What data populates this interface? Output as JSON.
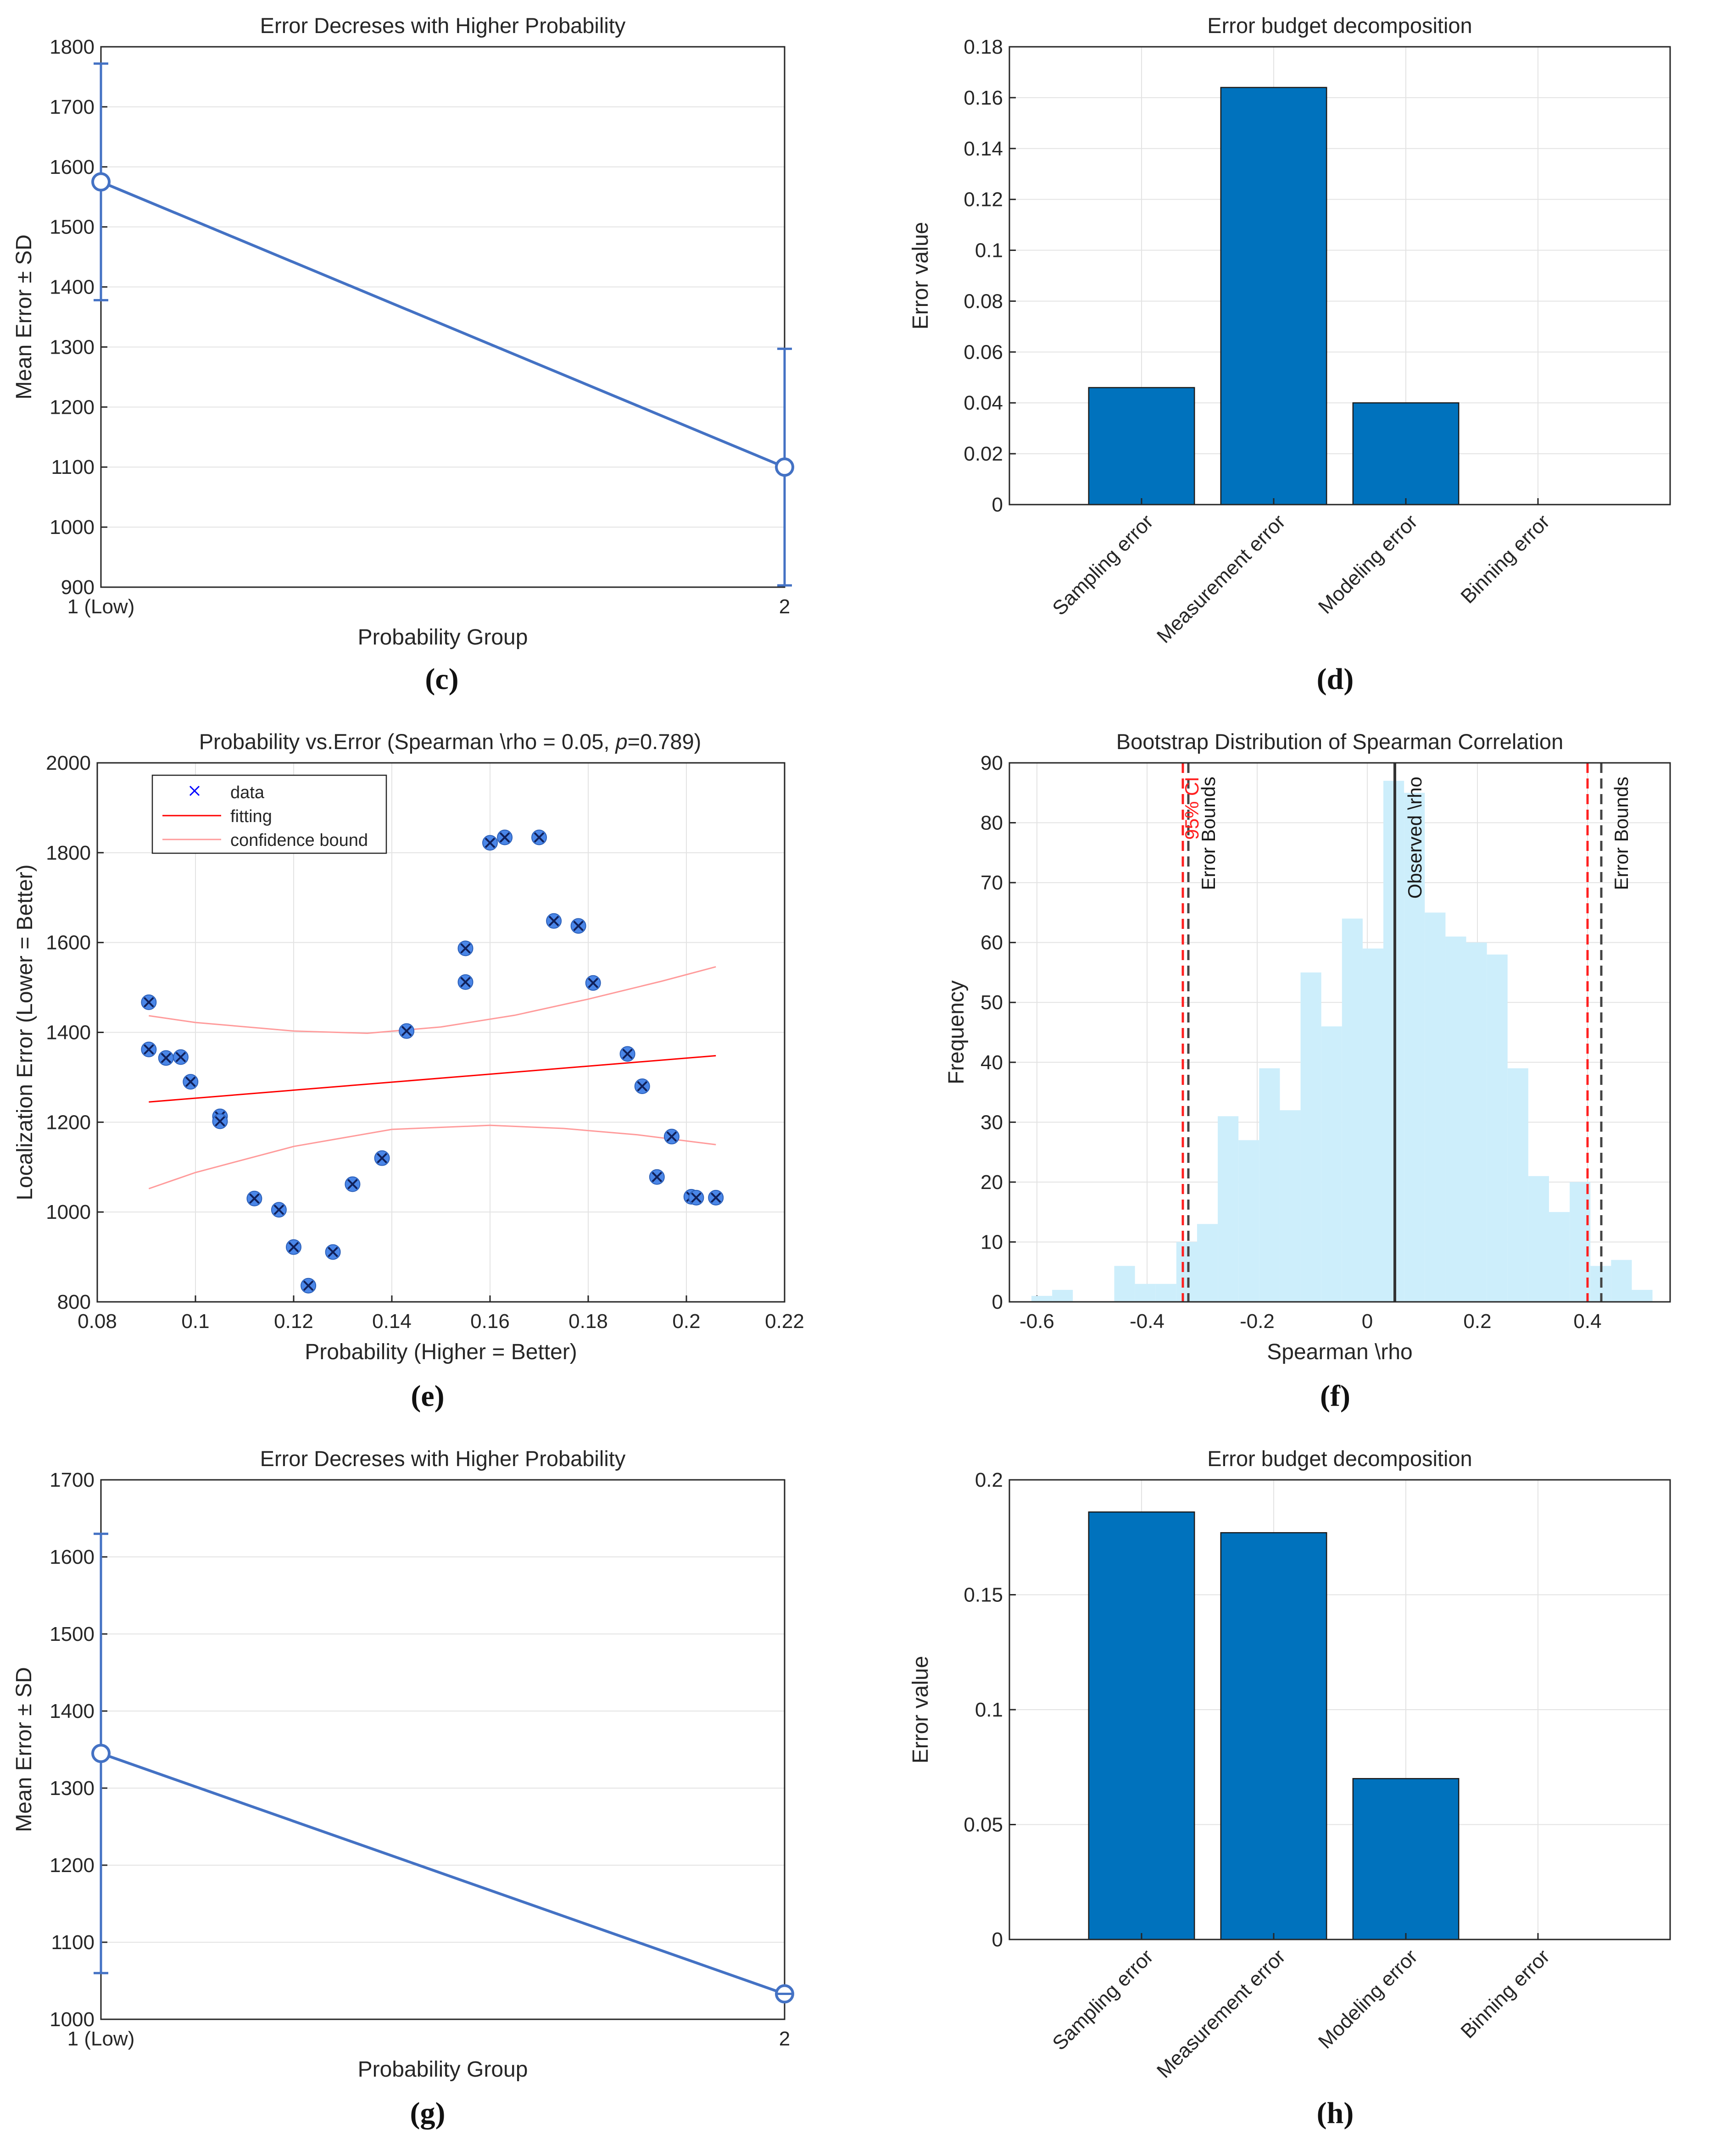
{
  "panel_labels": [
    "(c)",
    "(d)",
    "(e)",
    "(f)",
    "(g)",
    "(h)"
  ],
  "colors": {
    "line": "#4472C4",
    "bar": "#0072BD",
    "hist": "#CDEEFB",
    "fit": "#FF0000",
    "bound": "#FF9B9B",
    "marker": "#4A86E8",
    "observed": "#333333",
    "ci": "#FF2020",
    "err": "#444444"
  },
  "chart_data": [
    {
      "id": "c",
      "type": "line",
      "title": "Error Decreses with Higher Probability",
      "xlabel": "Probability Group",
      "ylabel": "Mean Error ± SD",
      "categories": [
        "1 (Low)",
        "2"
      ],
      "values": [
        1575,
        1100
      ],
      "sd": [
        197,
        197
      ],
      "ylim": [
        900,
        1800
      ],
      "yticks": [
        900,
        1000,
        1100,
        1200,
        1300,
        1400,
        1500,
        1600,
        1700,
        1800
      ],
      "grid": true
    },
    {
      "id": "d",
      "type": "bar",
      "title": "Error budget decomposition",
      "xlabel": "",
      "ylabel": "Error value",
      "categories": [
        "Sampling error",
        "Measurement error",
        "Modeling error",
        "Binning error"
      ],
      "values": [
        0.046,
        0.164,
        0.04,
        0
      ],
      "ylim": [
        0,
        0.18
      ],
      "yticks": [
        "0",
        "0.02",
        "0.04",
        "0.06",
        "0.08",
        "0.1",
        "0.12",
        "0.14",
        "0.16",
        "0.18"
      ],
      "grid": true
    },
    {
      "id": "e",
      "type": "scatter",
      "title": "Probability vs.Error (Spearman \\rho = 0.05,",
      "title_p": "p",
      "title_rest": "=0.789)",
      "xlabel": "Probability (Higher = Better)",
      "ylabel": "Localization Error (Lower = Better)",
      "xlim": [
        0.08,
        0.22
      ],
      "ylim": [
        800,
        2000
      ],
      "xticks": [
        "0.08",
        "0.1",
        "0.12",
        "0.14",
        "0.16",
        "0.18",
        "0.2",
        "0.22"
      ],
      "yticks": [
        "800",
        "1000",
        "1200",
        "1400",
        "1600",
        "1800",
        "2000"
      ],
      "points": [
        [
          0.0905,
          1467
        ],
        [
          0.0905,
          1362
        ],
        [
          0.094,
          1343
        ],
        [
          0.097,
          1345
        ],
        [
          0.099,
          1290
        ],
        [
          0.105,
          1213
        ],
        [
          0.105,
          1202
        ],
        [
          0.112,
          1030
        ],
        [
          0.117,
          1005
        ],
        [
          0.12,
          922
        ],
        [
          0.123,
          836
        ],
        [
          0.128,
          911
        ],
        [
          0.132,
          1062
        ],
        [
          0.138,
          1120
        ],
        [
          0.143,
          1403
        ],
        [
          0.155,
          1587
        ],
        [
          0.155,
          1512
        ],
        [
          0.16,
          1822
        ],
        [
          0.163,
          1834
        ],
        [
          0.17,
          1834
        ],
        [
          0.173,
          1648
        ],
        [
          0.178,
          1637
        ],
        [
          0.181,
          1510
        ],
        [
          0.188,
          1352
        ],
        [
          0.191,
          1280
        ],
        [
          0.194,
          1078
        ],
        [
          0.197,
          1168
        ],
        [
          0.201,
          1034
        ],
        [
          0.202,
          1032
        ],
        [
          0.206,
          1032
        ]
      ],
      "fit": [
        [
          0.0905,
          1245
        ],
        [
          0.206,
          1348
        ]
      ],
      "upper_bound": [
        [
          0.0905,
          1437
        ],
        [
          0.1,
          1422
        ],
        [
          0.12,
          1403
        ],
        [
          0.135,
          1398
        ],
        [
          0.15,
          1412
        ],
        [
          0.165,
          1438
        ],
        [
          0.18,
          1474
        ],
        [
          0.195,
          1514
        ],
        [
          0.206,
          1546
        ]
      ],
      "lower_bound": [
        [
          0.0905,
          1052
        ],
        [
          0.1,
          1088
        ],
        [
          0.12,
          1146
        ],
        [
          0.14,
          1184
        ],
        [
          0.16,
          1193
        ],
        [
          0.175,
          1186
        ],
        [
          0.19,
          1172
        ],
        [
          0.206,
          1150
        ]
      ],
      "legend": [
        "data",
        "fitting",
        "confidence bound"
      ],
      "legend_position": "top-left",
      "grid": true
    },
    {
      "id": "f",
      "type": "histogram",
      "title": "Bootstrap Distribution of Spearman Correlation",
      "xlabel": "Spearman \\rho",
      "ylabel": "Frequency",
      "xlim": [
        -0.65,
        0.55
      ],
      "ylim": [
        0,
        90
      ],
      "xticks": [
        "-0.6",
        "-0.4",
        "-0.2",
        "0",
        "0.2",
        "0.4"
      ],
      "yticks": [
        "0",
        "10",
        "20",
        "30",
        "40",
        "50",
        "60",
        "70",
        "80",
        "90"
      ],
      "bin_start": -0.61,
      "bin_width": 0.0376,
      "counts": [
        1,
        2,
        0,
        0,
        6,
        3,
        3,
        10,
        13,
        31,
        27,
        39,
        32,
        55,
        46,
        64,
        59,
        87,
        85,
        65,
        61,
        60,
        58,
        39,
        21,
        15,
        20,
        6,
        7,
        2
      ],
      "observed": 0.05,
      "ci_95": [
        -0.335,
        0.4
      ],
      "error_bounds": [
        -0.325,
        0.425
      ],
      "annotations": [
        "Observed \\rho",
        "Error Bounds",
        "Error Bounds",
        "95% CI"
      ],
      "grid": true
    },
    {
      "id": "g",
      "type": "line",
      "title": "Error Decreses with Higher Probability",
      "xlabel": "Probability Group",
      "ylabel": "Mean Error ± SD",
      "categories": [
        "1 (Low)",
        "2"
      ],
      "values": [
        1345,
        1033
      ],
      "sd": [
        285,
        0
      ],
      "ylim": [
        1000,
        1700
      ],
      "yticks": [
        1000,
        1100,
        1200,
        1300,
        1400,
        1500,
        1600,
        1700
      ],
      "grid": true
    },
    {
      "id": "h",
      "type": "bar",
      "title": "Error budget decomposition",
      "xlabel": "",
      "ylabel": "Error value",
      "categories": [
        "Sampling error",
        "Measurement error",
        "Modeling error",
        "Binning error"
      ],
      "values": [
        0.186,
        0.177,
        0.07,
        0
      ],
      "ylim": [
        0,
        0.2
      ],
      "yticks": [
        "0",
        "0.05",
        "0.1",
        "0.15",
        "0.2"
      ],
      "grid": true
    }
  ]
}
